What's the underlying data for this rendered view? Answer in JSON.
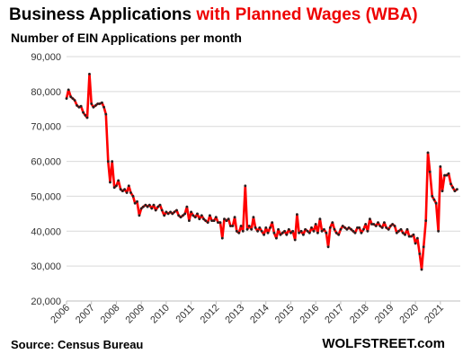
{
  "header": {
    "title_part1": "Business Applications",
    "title_part2": "with Planned Wages (WBA)",
    "subtitle": "Number of EIN Applications per month"
  },
  "footer": {
    "source": "Source: Census Bureau",
    "brand": "WOLFSTREET.com"
  },
  "colors": {
    "line": "#ff0000",
    "marker": "#222222",
    "grid": "#d9d9d9",
    "title_accent": "#ee0000"
  },
  "chart_data": {
    "type": "line",
    "title": "Business Applications with Planned Wages (WBA)",
    "ylabel": "Number of EIN Applications per month",
    "xlabel": "",
    "ylim": [
      20000,
      90000
    ],
    "xlim": [
      2006.0,
      2021.8
    ],
    "yticks": [
      20000,
      30000,
      40000,
      50000,
      60000,
      70000,
      80000,
      90000
    ],
    "ytick_labels": [
      "20,000",
      "30,000",
      "40,000",
      "50,000",
      "60,000",
      "70,000",
      "80,000",
      "90,000"
    ],
    "xticks": [
      2006,
      2007,
      2008,
      2009,
      2010,
      2011,
      2012,
      2013,
      2014,
      2015,
      2016,
      2017,
      2018,
      2019,
      2020,
      2021
    ],
    "xtick_labels": [
      "2006",
      "2007",
      "2008",
      "2009",
      "2010",
      "2011",
      "2012",
      "2013",
      "2014",
      "2015",
      "2016",
      "2017",
      "2018",
      "2019",
      "2020",
      "2021"
    ],
    "grid": "horizontal",
    "series": [
      {
        "name": "",
        "points": [
          [
            2006.0,
            78000
          ],
          [
            2006.08,
            80500
          ],
          [
            2006.17,
            78500
          ],
          [
            2006.25,
            78000
          ],
          [
            2006.33,
            77500
          ],
          [
            2006.42,
            76000
          ],
          [
            2006.5,
            75500
          ],
          [
            2006.58,
            75800
          ],
          [
            2006.67,
            74000
          ],
          [
            2006.75,
            73200
          ],
          [
            2006.83,
            72500
          ],
          [
            2006.92,
            85000
          ],
          [
            2007.0,
            76500
          ],
          [
            2007.08,
            75500
          ],
          [
            2007.17,
            76000
          ],
          [
            2007.25,
            76500
          ],
          [
            2007.33,
            76500
          ],
          [
            2007.42,
            76800
          ],
          [
            2007.5,
            75500
          ],
          [
            2007.58,
            73500
          ],
          [
            2007.67,
            60000
          ],
          [
            2007.75,
            54000
          ],
          [
            2007.83,
            60000
          ],
          [
            2007.92,
            52500
          ],
          [
            2008.0,
            53000
          ],
          [
            2008.08,
            54500
          ],
          [
            2008.17,
            52000
          ],
          [
            2008.25,
            51500
          ],
          [
            2008.33,
            52000
          ],
          [
            2008.42,
            51000
          ],
          [
            2008.5,
            53000
          ],
          [
            2008.58,
            51000
          ],
          [
            2008.67,
            50000
          ],
          [
            2008.75,
            48000
          ],
          [
            2008.83,
            48500
          ],
          [
            2008.92,
            44500
          ],
          [
            2009.0,
            46500
          ],
          [
            2009.08,
            47000
          ],
          [
            2009.17,
            47500
          ],
          [
            2009.25,
            47000
          ],
          [
            2009.33,
            47500
          ],
          [
            2009.42,
            46500
          ],
          [
            2009.5,
            47500
          ],
          [
            2009.58,
            46000
          ],
          [
            2009.67,
            47000
          ],
          [
            2009.75,
            47500
          ],
          [
            2009.83,
            46000
          ],
          [
            2009.92,
            44500
          ],
          [
            2010.0,
            45500
          ],
          [
            2010.08,
            45000
          ],
          [
            2010.17,
            45500
          ],
          [
            2010.25,
            45000
          ],
          [
            2010.33,
            45500
          ],
          [
            2010.42,
            46000
          ],
          [
            2010.5,
            44500
          ],
          [
            2010.58,
            44000
          ],
          [
            2010.67,
            44500
          ],
          [
            2010.75,
            45000
          ],
          [
            2010.83,
            47000
          ],
          [
            2010.92,
            43000
          ],
          [
            2011.0,
            45500
          ],
          [
            2011.08,
            44500
          ],
          [
            2011.17,
            44000
          ],
          [
            2011.25,
            45000
          ],
          [
            2011.33,
            43500
          ],
          [
            2011.42,
            44500
          ],
          [
            2011.5,
            43500
          ],
          [
            2011.58,
            43000
          ],
          [
            2011.67,
            42500
          ],
          [
            2011.75,
            44500
          ],
          [
            2011.83,
            43000
          ],
          [
            2011.92,
            43000
          ],
          [
            2012.0,
            44000
          ],
          [
            2012.08,
            42500
          ],
          [
            2012.17,
            42500
          ],
          [
            2012.25,
            38000
          ],
          [
            2012.33,
            43500
          ],
          [
            2012.42,
            43000
          ],
          [
            2012.5,
            43500
          ],
          [
            2012.58,
            41500
          ],
          [
            2012.67,
            41500
          ],
          [
            2012.75,
            44000
          ],
          [
            2012.83,
            40000
          ],
          [
            2012.92,
            39500
          ],
          [
            2013.0,
            41500
          ],
          [
            2013.08,
            40000
          ],
          [
            2013.17,
            53000
          ],
          [
            2013.25,
            40500
          ],
          [
            2013.33,
            41500
          ],
          [
            2013.42,
            40500
          ],
          [
            2013.5,
            44000
          ],
          [
            2013.58,
            41000
          ],
          [
            2013.67,
            40000
          ],
          [
            2013.75,
            41000
          ],
          [
            2013.83,
            40000
          ],
          [
            2013.92,
            39000
          ],
          [
            2014.0,
            41000
          ],
          [
            2014.08,
            39500
          ],
          [
            2014.17,
            41000
          ],
          [
            2014.25,
            42500
          ],
          [
            2014.33,
            39500
          ],
          [
            2014.42,
            38000
          ],
          [
            2014.5,
            40500
          ],
          [
            2014.58,
            39000
          ],
          [
            2014.67,
            39500
          ],
          [
            2014.75,
            40000
          ],
          [
            2014.83,
            39000
          ],
          [
            2014.92,
            40500
          ],
          [
            2015.0,
            39500
          ],
          [
            2015.08,
            40000
          ],
          [
            2015.17,
            37500
          ],
          [
            2015.25,
            44800
          ],
          [
            2015.33,
            39500
          ],
          [
            2015.42,
            40000
          ],
          [
            2015.5,
            39000
          ],
          [
            2015.58,
            40500
          ],
          [
            2015.67,
            40000
          ],
          [
            2015.75,
            39500
          ],
          [
            2015.83,
            41000
          ],
          [
            2015.92,
            40000
          ],
          [
            2016.0,
            42000
          ],
          [
            2016.08,
            39500
          ],
          [
            2016.17,
            43500
          ],
          [
            2016.25,
            40000
          ],
          [
            2016.33,
            40500
          ],
          [
            2016.42,
            39500
          ],
          [
            2016.5,
            35500
          ],
          [
            2016.58,
            41000
          ],
          [
            2016.67,
            42500
          ],
          [
            2016.75,
            40500
          ],
          [
            2016.83,
            39500
          ],
          [
            2016.92,
            39000
          ],
          [
            2017.0,
            40500
          ],
          [
            2017.08,
            41500
          ],
          [
            2017.17,
            41000
          ],
          [
            2017.25,
            40500
          ],
          [
            2017.33,
            41000
          ],
          [
            2017.42,
            40500
          ],
          [
            2017.5,
            40000
          ],
          [
            2017.58,
            39500
          ],
          [
            2017.67,
            41000
          ],
          [
            2017.75,
            41000
          ],
          [
            2017.83,
            39500
          ],
          [
            2017.92,
            40500
          ],
          [
            2018.0,
            42000
          ],
          [
            2018.08,
            40000
          ],
          [
            2018.17,
            43500
          ],
          [
            2018.25,
            42000
          ],
          [
            2018.33,
            42000
          ],
          [
            2018.42,
            41500
          ],
          [
            2018.5,
            42500
          ],
          [
            2018.58,
            41500
          ],
          [
            2018.67,
            41000
          ],
          [
            2018.75,
            42500
          ],
          [
            2018.83,
            41000
          ],
          [
            2018.92,
            40500
          ],
          [
            2019.0,
            41500
          ],
          [
            2019.08,
            42000
          ],
          [
            2019.17,
            41500
          ],
          [
            2019.25,
            39500
          ],
          [
            2019.33,
            40000
          ],
          [
            2019.42,
            40500
          ],
          [
            2019.5,
            39500
          ],
          [
            2019.58,
            39000
          ],
          [
            2019.67,
            40500
          ],
          [
            2019.75,
            38500
          ],
          [
            2019.83,
            38500
          ],
          [
            2019.92,
            39000
          ],
          [
            2020.0,
            36500
          ],
          [
            2020.08,
            38000
          ],
          [
            2020.17,
            33500
          ],
          [
            2020.25,
            29000
          ],
          [
            2020.33,
            35500
          ],
          [
            2020.42,
            43000
          ],
          [
            2020.5,
            62500
          ],
          [
            2020.58,
            57000
          ],
          [
            2020.67,
            50000
          ],
          [
            2020.75,
            49000
          ],
          [
            2020.83,
            48000
          ],
          [
            2020.92,
            40000
          ],
          [
            2021.0,
            58500
          ],
          [
            2021.08,
            51500
          ],
          [
            2021.17,
            56000
          ],
          [
            2021.25,
            56000
          ],
          [
            2021.33,
            56500
          ],
          [
            2021.42,
            53500
          ],
          [
            2021.5,
            52500
          ],
          [
            2021.58,
            51500
          ],
          [
            2021.67,
            52000
          ]
        ]
      }
    ]
  }
}
